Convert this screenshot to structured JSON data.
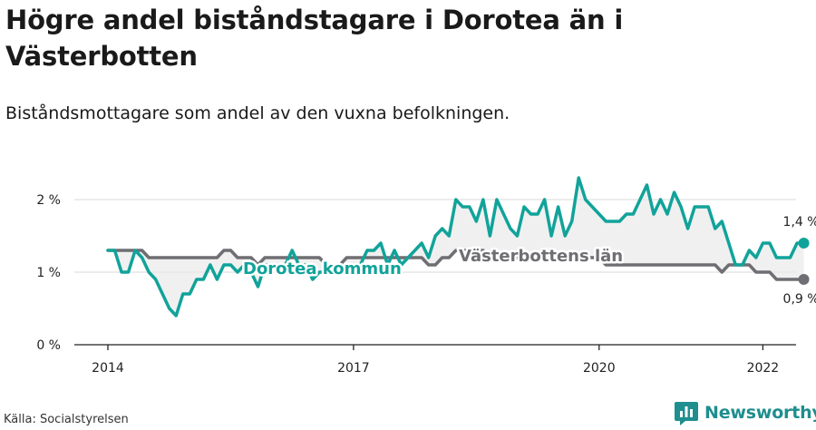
{
  "header": {
    "title": "Högre andel biståndstagare i Dorotea än i Västerbotten",
    "subtitle": "Biståndsmottagare som andel av den vuxna befolkningen."
  },
  "footer": {
    "source": "Källa: Socialstyrelsen",
    "brand": "Newsworthy"
  },
  "colors": {
    "dorotea": "#11a39a",
    "vasterbotten": "#6e6e73",
    "band": "#e9e9e9",
    "grid": "#d9d9d9",
    "axis": "#222222"
  },
  "icons": {
    "brand_logo": "bar-chart-icon"
  },
  "chart_data": {
    "type": "line",
    "ylim": [
      0,
      2.4
    ],
    "yticks": [
      {
        "value": 0,
        "label": "0 %"
      },
      {
        "value": 1,
        "label": "1 %"
      },
      {
        "value": 2,
        "label": "2 %"
      }
    ],
    "xticks": [
      {
        "value": 2014,
        "label": "2014"
      },
      {
        "value": 2017,
        "label": "2017"
      },
      {
        "value": 2020,
        "label": "2020"
      },
      {
        "value": 2022,
        "label": "2022"
      }
    ],
    "series": [
      {
        "name": "Dorotea kommun",
        "end_label": "1,4 %",
        "start_year": 2014,
        "step_months": 1,
        "values": [
          1.3,
          1.3,
          1.0,
          1.0,
          1.3,
          1.2,
          1.0,
          0.9,
          0.7,
          0.5,
          0.4,
          0.7,
          0.7,
          0.9,
          0.9,
          1.1,
          0.9,
          1.1,
          1.1,
          1.0,
          1.1,
          1.0,
          0.8,
          1.1,
          1.1,
          1.1,
          1.1,
          1.3,
          1.1,
          1.1,
          0.9,
          1.0,
          1.0,
          1.1,
          1.0,
          1.0,
          1.1,
          1.1,
          1.3,
          1.3,
          1.4,
          1.1,
          1.3,
          1.1,
          1.2,
          1.3,
          1.4,
          1.2,
          1.5,
          1.6,
          1.5,
          2.0,
          1.9,
          1.9,
          1.7,
          2.0,
          1.5,
          2.0,
          1.8,
          1.6,
          1.5,
          1.9,
          1.8,
          1.8,
          2.0,
          1.5,
          1.9,
          1.5,
          1.7,
          2.3,
          2.0,
          1.9,
          1.8,
          1.7,
          1.7,
          1.7,
          1.8,
          1.8,
          2.0,
          2.2,
          1.8,
          2.0,
          1.8,
          2.1,
          1.9,
          1.6,
          1.9,
          1.9,
          1.9,
          1.6,
          1.7,
          1.4,
          1.1,
          1.1,
          1.3,
          1.2,
          1.4,
          1.4,
          1.2,
          1.2,
          1.2,
          1.4,
          1.4
        ]
      },
      {
        "name": "Västerbottens län",
        "end_label": "0,9 %",
        "start_year": 2014,
        "step_months": 1,
        "values": [
          1.3,
          1.3,
          1.3,
          1.3,
          1.3,
          1.3,
          1.2,
          1.2,
          1.2,
          1.2,
          1.2,
          1.2,
          1.2,
          1.2,
          1.2,
          1.2,
          1.2,
          1.3,
          1.3,
          1.2,
          1.2,
          1.2,
          1.1,
          1.2,
          1.2,
          1.2,
          1.2,
          1.2,
          1.2,
          1.2,
          1.2,
          1.2,
          1.1,
          1.1,
          1.1,
          1.2,
          1.2,
          1.2,
          1.2,
          1.2,
          1.2,
          1.2,
          1.2,
          1.2,
          1.2,
          1.2,
          1.2,
          1.1,
          1.1,
          1.2,
          1.2,
          1.3,
          1.3,
          1.3,
          1.3,
          1.3,
          1.2,
          1.2,
          1.2,
          1.2,
          1.2,
          1.2,
          1.2,
          1.2,
          1.2,
          1.2,
          1.2,
          1.2,
          1.2,
          1.2,
          1.2,
          1.2,
          1.2,
          1.1,
          1.1,
          1.1,
          1.1,
          1.1,
          1.1,
          1.1,
          1.1,
          1.1,
          1.1,
          1.1,
          1.1,
          1.1,
          1.1,
          1.1,
          1.1,
          1.1,
          1.0,
          1.1,
          1.1,
          1.1,
          1.1,
          1.0,
          1.0,
          1.0,
          0.9,
          0.9,
          0.9,
          0.9,
          0.9
        ]
      }
    ]
  }
}
